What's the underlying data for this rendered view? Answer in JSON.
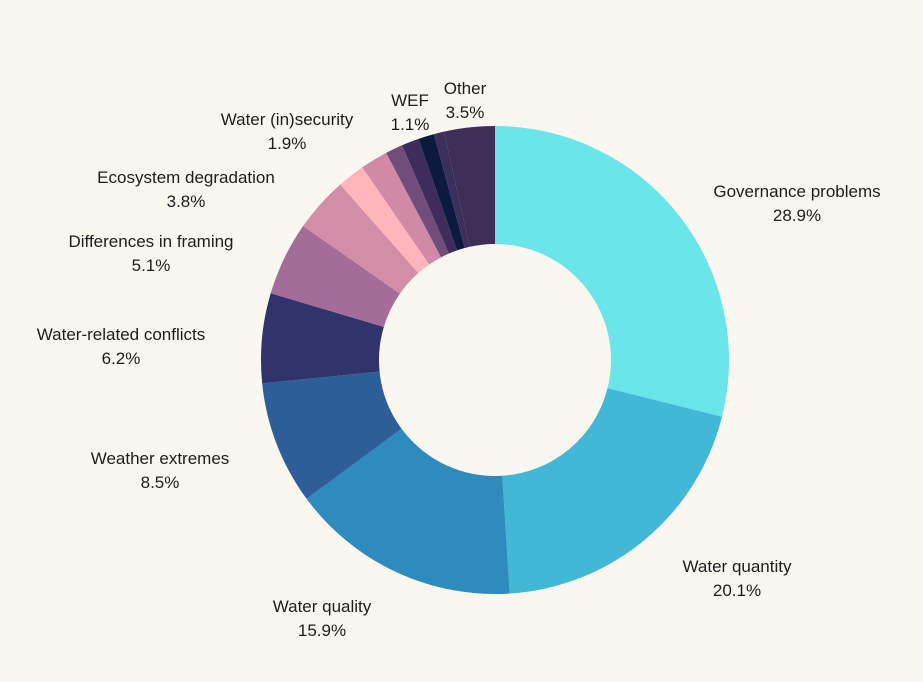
{
  "chart_data": {
    "type": "pie",
    "style": "donut",
    "legend": "none",
    "slices": [
      {
        "name": "Governance problems",
        "value": 28.9,
        "label": "28.9%",
        "color": "#6ae5ea"
      },
      {
        "name": "Water quantity",
        "value": 20.1,
        "label": "20.1%",
        "color": "#43b8d6"
      },
      {
        "name": "Water quality",
        "value": 15.9,
        "label": "15.9%",
        "color": "#2e8bbd"
      },
      {
        "name": "Weather extremes",
        "value": 8.5,
        "label": "8.5%",
        "color": "#2d5e99"
      },
      {
        "name": "Water-related conflicts",
        "value": 6.2,
        "label": "6.2%",
        "color": "#31346b"
      },
      {
        "name": "Differences in framing",
        "value": 5.1,
        "label": "5.1%",
        "color": "#a46d99"
      },
      {
        "name": "Ecosystem degradation",
        "value": 3.8,
        "label": "3.8%",
        "color": "#d28da7"
      },
      {
        "name": "Water (in)security",
        "value": 1.9,
        "label": "1.9%",
        "color": "#ffb5bb"
      },
      {
        "name": "",
        "value": 1.9,
        "label": "",
        "color": "#d18aa5"
      },
      {
        "name": "",
        "value": 1.2,
        "label": "",
        "color": "#714d7c"
      },
      {
        "name": "",
        "value": 1.2,
        "label": "",
        "color": "#3e2d5c"
      },
      {
        "name": "WEF",
        "value": 1.1,
        "label": "1.1%",
        "color": "#0c1a3f"
      },
      {
        "name": "",
        "value": 0.7,
        "label": "",
        "color": "#3b2f5b"
      },
      {
        "name": "Other",
        "value": 3.5,
        "label": "3.5%",
        "color": "#3f2f58"
      }
    ]
  }
}
